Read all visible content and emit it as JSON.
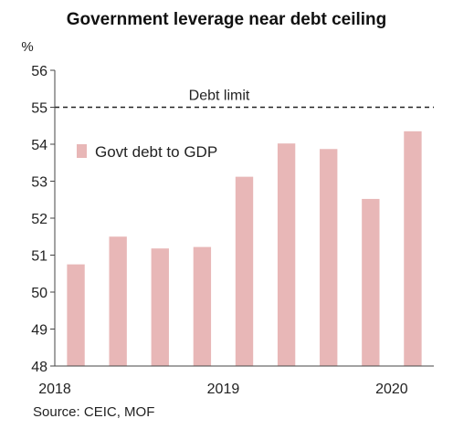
{
  "chart_data": {
    "type": "bar",
    "title": "Government leverage near debt ceiling",
    "y_unit": "%",
    "ylim": [
      48,
      56
    ],
    "y_ticks": [
      48,
      49,
      50,
      51,
      52,
      53,
      54,
      55,
      56
    ],
    "x_tick_labels": [
      "2018",
      "2019",
      "2020"
    ],
    "series": [
      {
        "name": "Govt debt to GDP",
        "color": "#e8b7b7",
        "values": [
          50.75,
          51.5,
          51.18,
          51.22,
          53.12,
          54.02,
          53.87,
          52.52,
          54.35
        ]
      }
    ],
    "reference_line": {
      "label": "Debt limit",
      "value": 55,
      "style": "dashed"
    },
    "legend_position": "left",
    "grid": false,
    "source": "Source: CEIC, MOF"
  }
}
